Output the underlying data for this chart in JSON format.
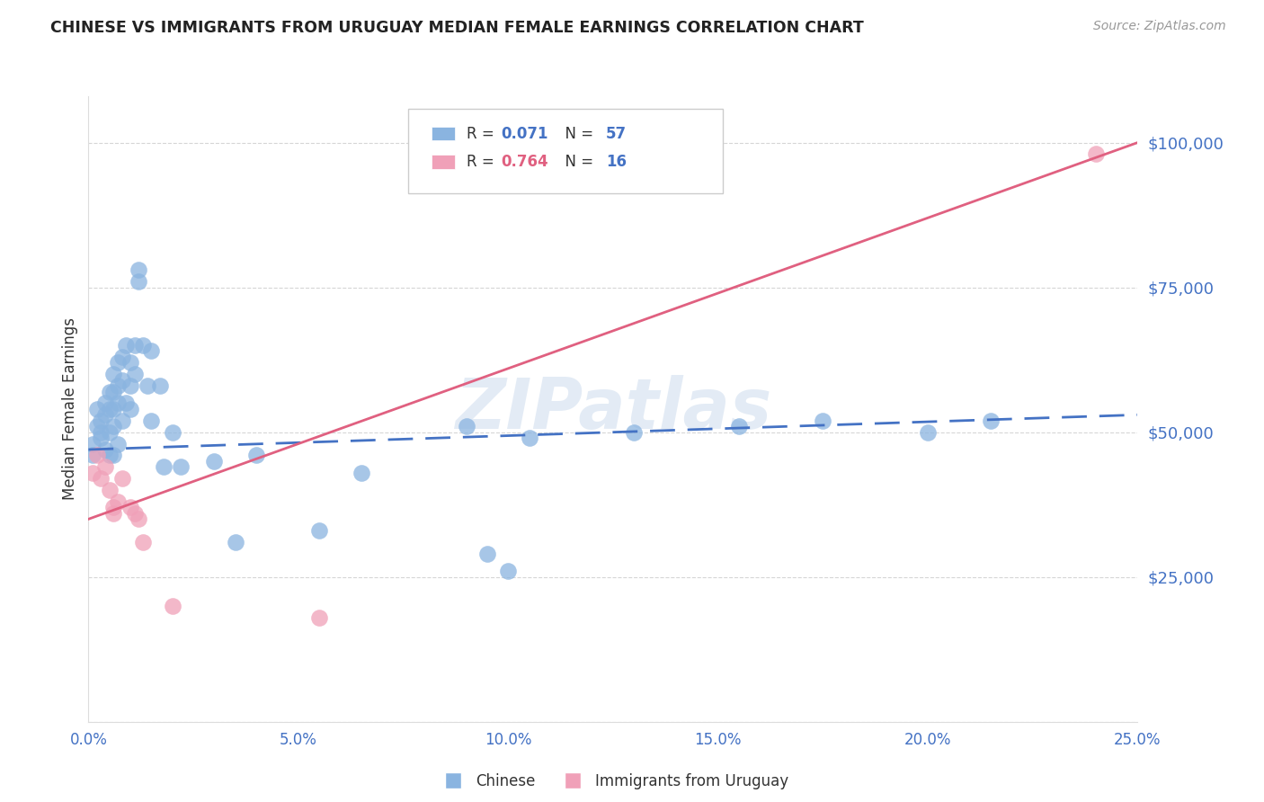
{
  "title": "CHINESE VS IMMIGRANTS FROM URUGUAY MEDIAN FEMALE EARNINGS CORRELATION CHART",
  "source": "Source: ZipAtlas.com",
  "ylabel": "Median Female Earnings",
  "yticks": [
    0,
    25000,
    50000,
    75000,
    100000
  ],
  "ytick_labels": [
    "",
    "$25,000",
    "$50,000",
    "$75,000",
    "$100,000"
  ],
  "xlim": [
    0.0,
    0.25
  ],
  "ylim": [
    0,
    108000
  ],
  "watermark": "ZIPatlas",
  "legend1_r": "0.071",
  "legend1_n": "57",
  "legend2_r": "0.764",
  "legend2_n": "16",
  "chinese_color": "#8ab4e0",
  "uruguay_color": "#f0a0b8",
  "line_chinese_color": "#4472c4",
  "line_uruguay_color": "#e06080",
  "chinese_points_x": [
    0.001,
    0.001,
    0.002,
    0.002,
    0.003,
    0.003,
    0.003,
    0.004,
    0.004,
    0.004,
    0.005,
    0.005,
    0.005,
    0.005,
    0.006,
    0.006,
    0.006,
    0.006,
    0.006,
    0.007,
    0.007,
    0.007,
    0.007,
    0.008,
    0.008,
    0.008,
    0.009,
    0.009,
    0.01,
    0.01,
    0.01,
    0.011,
    0.011,
    0.012,
    0.012,
    0.013,
    0.014,
    0.015,
    0.015,
    0.017,
    0.018,
    0.02,
    0.022,
    0.03,
    0.035,
    0.04,
    0.055,
    0.065,
    0.09,
    0.095,
    0.1,
    0.105,
    0.13,
    0.155,
    0.175,
    0.2,
    0.215
  ],
  "chinese_points_y": [
    48000,
    46000,
    51000,
    54000,
    49000,
    52000,
    50000,
    55000,
    53000,
    47000,
    57000,
    54000,
    50000,
    46000,
    60000,
    57000,
    54000,
    51000,
    46000,
    62000,
    58000,
    55000,
    48000,
    63000,
    59000,
    52000,
    65000,
    55000,
    62000,
    58000,
    54000,
    65000,
    60000,
    76000,
    78000,
    65000,
    58000,
    64000,
    52000,
    58000,
    44000,
    50000,
    44000,
    45000,
    31000,
    46000,
    33000,
    43000,
    51000,
    29000,
    26000,
    49000,
    50000,
    51000,
    52000,
    50000,
    52000
  ],
  "uruguay_points_x": [
    0.001,
    0.002,
    0.003,
    0.004,
    0.005,
    0.006,
    0.006,
    0.007,
    0.008,
    0.01,
    0.011,
    0.012,
    0.013,
    0.02,
    0.055,
    0.24
  ],
  "uruguay_points_y": [
    43000,
    46000,
    42000,
    44000,
    40000,
    37000,
    36000,
    38000,
    42000,
    37000,
    36000,
    35000,
    31000,
    20000,
    18000,
    98000
  ],
  "chinese_trend_x0": 0.0,
  "chinese_trend_x1": 0.25,
  "chinese_trend_y0": 47000,
  "chinese_trend_y1": 53000,
  "uruguay_trend_x0": 0.0,
  "uruguay_trend_x1": 0.25,
  "uruguay_trend_y0": 35000,
  "uruguay_trend_y1": 100000,
  "background_color": "#ffffff",
  "grid_color": "#cccccc",
  "title_color": "#222222",
  "ytick_color": "#4472c4",
  "xtick_color": "#4472c4",
  "r_color_chinese": "#4472c4",
  "n_color_chinese": "#4472c4",
  "r_color_uruguay": "#e06080",
  "n_color_uruguay": "#4472c4"
}
